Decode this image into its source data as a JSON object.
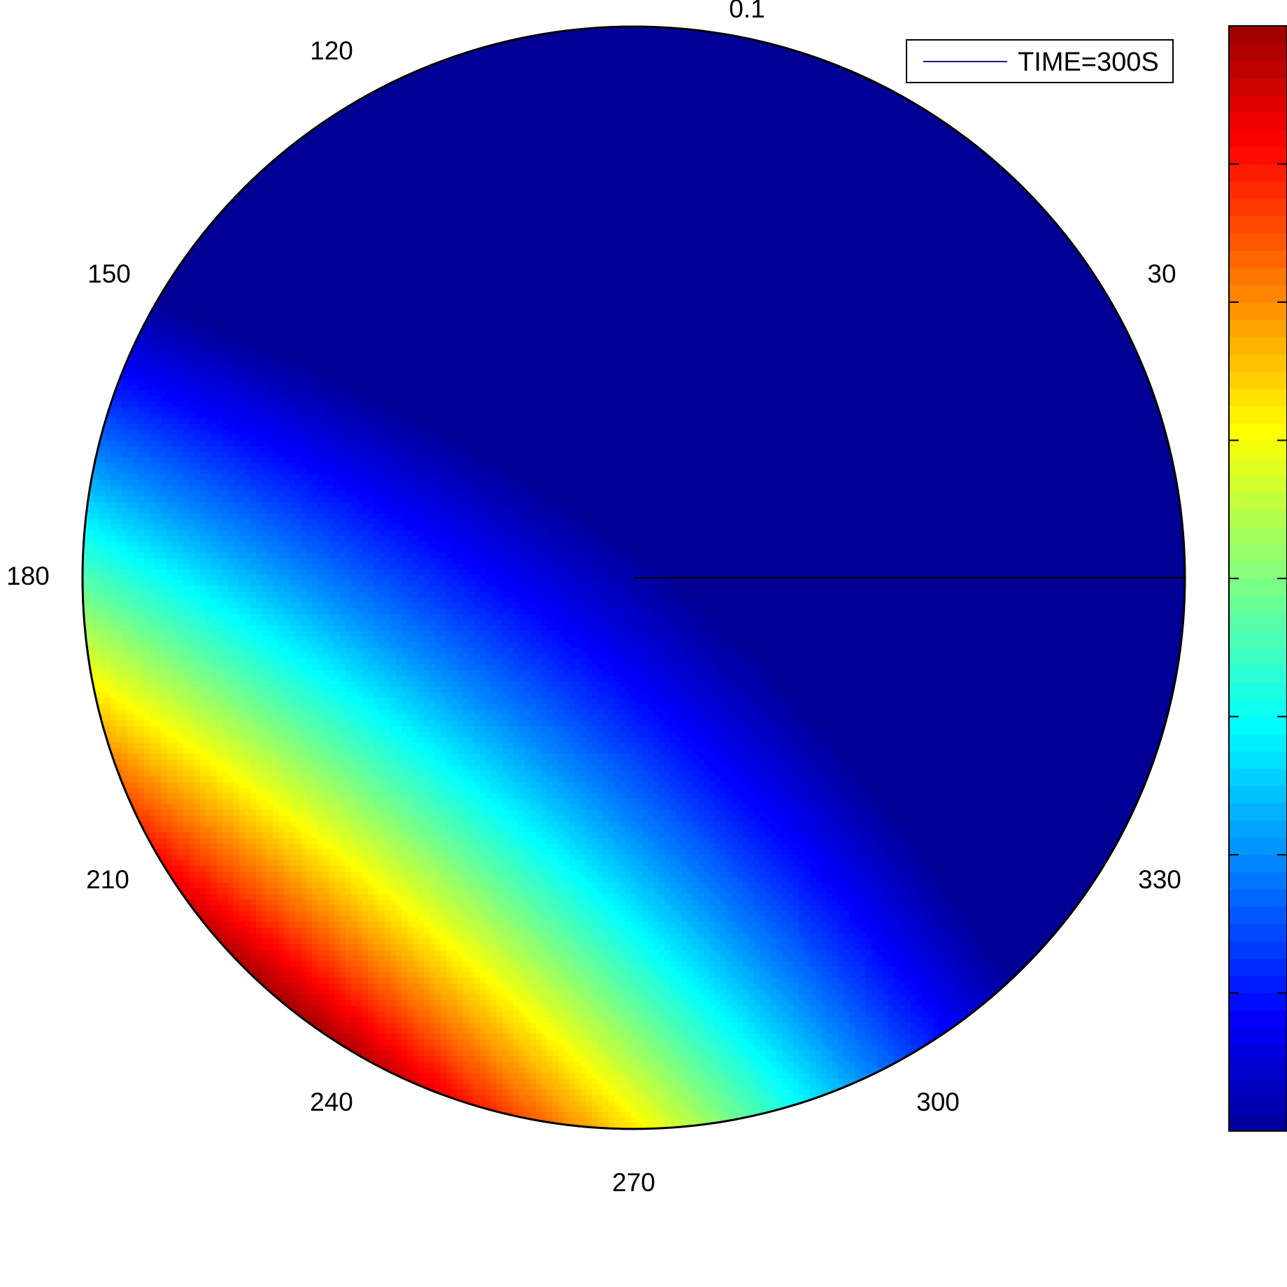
{
  "chart_data": {
    "type": "heatmap",
    "subtype": "polar-filled-contour",
    "title": "",
    "xlabel": "",
    "ylabel": "",
    "colormap": "jet",
    "contour_lines": true,
    "contour_line_color": "#000000",
    "grid": false,
    "legend": {
      "placement": "top-right",
      "entries": [
        {
          "label": "TIME=300S",
          "line_color": "#1a1a80"
        }
      ]
    },
    "angular_ticks": [
      {
        "angle": 0,
        "label": "0.1"
      },
      {
        "angle": 30,
        "label": "30"
      },
      {
        "angle": 120,
        "label": "120"
      },
      {
        "angle": 150,
        "label": "150"
      },
      {
        "angle": 180,
        "label": "180"
      },
      {
        "angle": 210,
        "label": "210"
      },
      {
        "angle": 240,
        "label": "240"
      },
      {
        "angle": 270,
        "label": "270"
      },
      {
        "angle": 300,
        "label": "300"
      },
      {
        "angle": 330,
        "label": "330"
      }
    ],
    "field": {
      "radius_range": [
        0,
        1
      ],
      "max_value_angle_deg": 232,
      "min_value_axis_angle_deg": 135,
      "relative_range": [
        0,
        1
      ]
    },
    "colorbar": {
      "tick_count": 7,
      "labels": []
    }
  }
}
